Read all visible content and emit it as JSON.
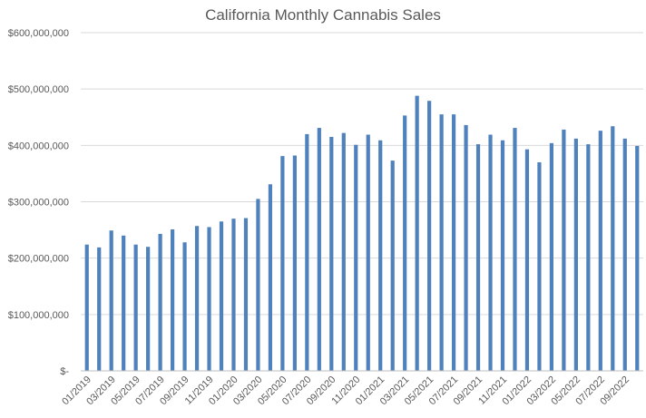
{
  "chart_data": {
    "type": "bar",
    "title": "California Monthly Cannabis Sales",
    "xlabel": "",
    "ylabel": "",
    "ylim": [
      0,
      600000000
    ],
    "y_ticks": [
      {
        "value": 0,
        "label": "$-"
      },
      {
        "value": 100000000,
        "label": "$100,000,000"
      },
      {
        "value": 200000000,
        "label": "$200,000,000"
      },
      {
        "value": 300000000,
        "label": "$300,000,000"
      },
      {
        "value": 400000000,
        "label": "$400,000,000"
      },
      {
        "value": 500000000,
        "label": "$500,000,000"
      },
      {
        "value": 600000000,
        "label": "$600,000,000"
      }
    ],
    "grid": true,
    "bar_color": "#4f81bd",
    "categories": [
      "01/2019",
      "02/2019",
      "03/2019",
      "04/2019",
      "05/2019",
      "06/2019",
      "07/2019",
      "08/2019",
      "09/2019",
      "10/2019",
      "11/2019",
      "12/2019",
      "01/2020",
      "02/2020",
      "03/2020",
      "04/2020",
      "05/2020",
      "06/2020",
      "07/2020",
      "08/2020",
      "09/2020",
      "10/2020",
      "11/2020",
      "12/2020",
      "01/2021",
      "02/2021",
      "03/2021",
      "04/2021",
      "05/2021",
      "06/2021",
      "07/2021",
      "08/2021",
      "09/2021",
      "10/2021",
      "11/2021",
      "12/2021",
      "01/2022",
      "02/2022",
      "03/2022",
      "04/2022",
      "05/2022",
      "06/2022",
      "07/2022",
      "08/2022",
      "09/2022",
      "10/2022"
    ],
    "shown_tick_labels": [
      "01/2019",
      "03/2019",
      "05/2019",
      "07/2019",
      "09/2019",
      "11/2019",
      "01/2020",
      "03/2020",
      "05/2020",
      "07/2020",
      "09/2020",
      "11/2020",
      "01/2021",
      "03/2021",
      "05/2021",
      "07/2021",
      "09/2021",
      "11/2021",
      "01/2022",
      "03/2022",
      "05/2022",
      "07/2022",
      "09/2022"
    ],
    "values": [
      224000000,
      219000000,
      249000000,
      240000000,
      224000000,
      220000000,
      243000000,
      251000000,
      228000000,
      257000000,
      255000000,
      265000000,
      270000000,
      271000000,
      305000000,
      331000000,
      381000000,
      382000000,
      420000000,
      431000000,
      415000000,
      422000000,
      401000000,
      419000000,
      409000000,
      373000000,
      453000000,
      488000000,
      479000000,
      455000000,
      455000000,
      436000000,
      402000000,
      419000000,
      409000000,
      431000000,
      393000000,
      370000000,
      404000000,
      428000000,
      412000000,
      402000000,
      426000000,
      434000000,
      412000000,
      399000000
    ]
  }
}
